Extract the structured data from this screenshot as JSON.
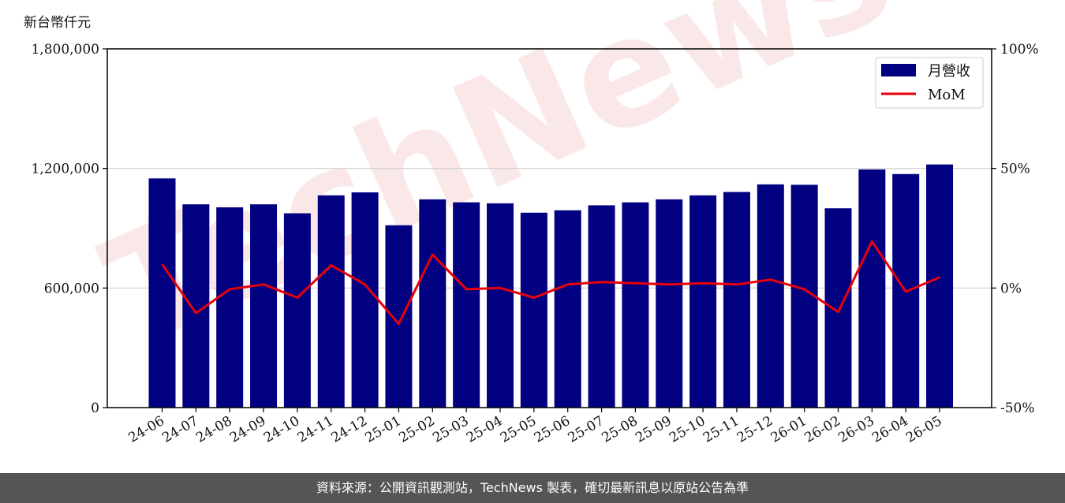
{
  "unit_label": "新台幣仟元",
  "footer_text": "資料來源：公開資訊觀測站，TechNews 製表，確切最新訊息以原站公告為準",
  "watermark_text": "TechNews",
  "colors": {
    "bar": "#000080",
    "line": "#e8000b",
    "footer_bg": "#555555",
    "watermark": "#f6d6d6"
  },
  "chart_data": {
    "type": "bar",
    "categories": [
      "24-06",
      "24-07",
      "24-08",
      "24-09",
      "24-10",
      "24-11",
      "24-12",
      "25-01",
      "25-02",
      "25-03",
      "25-04",
      "25-05",
      "25-06",
      "25-07",
      "25-08",
      "25-09",
      "25-10",
      "25-11",
      "25-12",
      "26-01",
      "26-02",
      "26-03",
      "26-04",
      "26-05"
    ],
    "series": [
      {
        "name": "月營收",
        "axis": "left",
        "type": "bar",
        "values": [
          1150000,
          1020000,
          1005000,
          1020000,
          975000,
          1065000,
          1080000,
          915000,
          1045000,
          1030000,
          1025000,
          978000,
          990000,
          1015000,
          1030000,
          1045000,
          1065000,
          1082000,
          1120000,
          1118000,
          1000000,
          1195000,
          1172000,
          1220000
        ]
      },
      {
        "name": "MoM",
        "axis": "right",
        "type": "line",
        "values": [
          10.0,
          -10.5,
          -0.5,
          1.5,
          -4.0,
          9.5,
          1.5,
          -15.0,
          14.0,
          -0.5,
          0,
          -4.0,
          1.5,
          2.5,
          2.0,
          1.5,
          2.0,
          1.5,
          3.5,
          -0.5,
          -10.0,
          19.5,
          -1.5,
          4.5
        ]
      }
    ],
    "y_left": {
      "ylim": [
        0,
        1800000
      ],
      "ticks": [
        "0",
        "600,000",
        "1,200,000",
        "1,800,000"
      ],
      "tick_values": [
        0,
        600000,
        1200000,
        1800000
      ]
    },
    "y_right": {
      "ylim": [
        -50,
        100
      ],
      "ticks": [
        "-50%",
        "0%",
        "50%",
        "100%"
      ],
      "tick_values": [
        -50,
        0,
        50,
        100
      ]
    },
    "grid": "horizontal",
    "legend_position": "top-right"
  }
}
